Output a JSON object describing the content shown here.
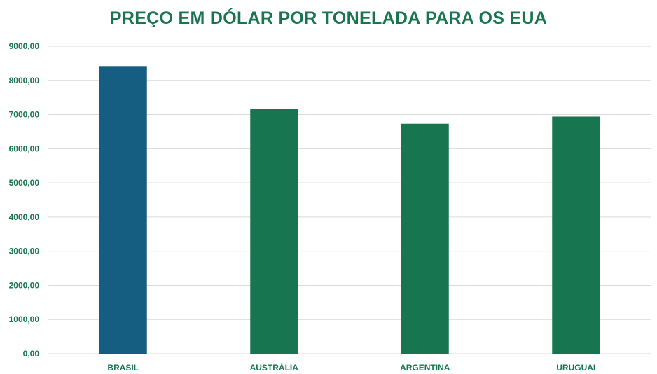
{
  "chart_data": {
    "type": "bar",
    "title": "PREÇO EM DÓLAR POR TONELADA PARA OS EUA",
    "xlabel": "",
    "ylabel": "",
    "categories": [
      "BRASIL",
      "AUSTRÁLIA",
      "ARGENTINA",
      "URUGUAI"
    ],
    "values": [
      8420,
      7160,
      6730,
      6940
    ],
    "ylim": [
      0,
      9000
    ],
    "yticks": [
      0,
      1000,
      2000,
      3000,
      4000,
      5000,
      6000,
      7000,
      8000,
      9000
    ],
    "ytick_labels": [
      "0,00",
      "1000,00",
      "2000,00",
      "3000,00",
      "4000,00",
      "5000,00",
      "6000,00",
      "7000,00",
      "8000,00",
      "9000,00"
    ],
    "bar_colors": [
      "#155e82",
      "#17764f",
      "#17764f",
      "#17764f"
    ],
    "grid": true,
    "legend": "none"
  },
  "colors": {
    "title": "#17764f",
    "labels": "#17764f",
    "gridline": "#d9d9d9"
  }
}
